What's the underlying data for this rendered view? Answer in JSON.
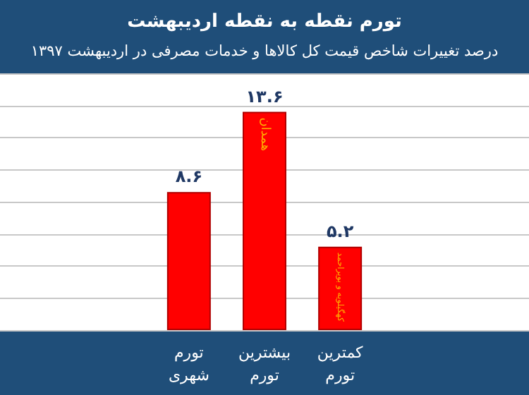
{
  "chart_data": {
    "type": "bar",
    "title": "تورم نقطه به نقطه اردیبهشت",
    "subtitle": "درصد تغییرات شاخص قیمت کل کالاها و خدمات مصرفی در اردیبهشت ۱۳۹۷",
    "categories": [
      null,
      null,
      "تورم شهری",
      "بیشترین تورم",
      "کمترین تورم",
      null,
      null
    ],
    "values": [
      null,
      null,
      8.6,
      13.6,
      5.2,
      null,
      null
    ],
    "value_labels": [
      null,
      null,
      "۸.۶",
      "۱۳.۶",
      "۵.۲",
      null,
      null
    ],
    "color": "#ff0000",
    "annotations": [
      {
        "text": "همدان",
        "x": "بیشترین تورم",
        "y": 13.6
      },
      {
        "text": "کهگیلویه و بویراحمد",
        "x": "کمترین تورم",
        "y": 5.2
      }
    ],
    "ylim": [
      0,
      16
    ],
    "yticks": [
      {
        "value": 0,
        "label": null
      },
      {
        "value": 2,
        "label": null
      },
      {
        "value": 4,
        "label": null
      },
      {
        "value": 6,
        "label": null
      },
      {
        "value": 8,
        "label": null
      },
      {
        "value": 10,
        "label": null
      },
      {
        "value": 12,
        "label": null
      },
      {
        "value": 14,
        "label": null
      },
      {
        "value": 16,
        "label": null
      }
    ],
    "tick_labels": "x",
    "grid": "y"
  }
}
